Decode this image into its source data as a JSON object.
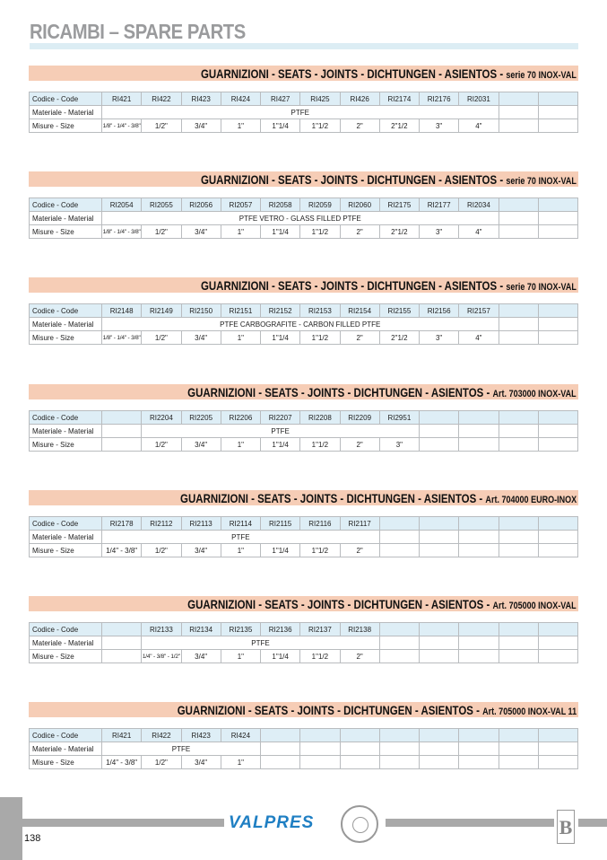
{
  "page_title": "RICAMBI – SPARE PARTS",
  "row_labels": {
    "code": "Codice - Code",
    "material": "Materiale - Material",
    "size": "Misure - Size"
  },
  "banner_main": "GUARNIZIONI - SEATS - JOINTS - DICHTUNGEN - ASIENTOS - ",
  "sections": [
    {
      "suffix": "serie 70 INOX-VAL",
      "codes": [
        "RI421",
        "RI422",
        "RI423",
        "RI424",
        "RI427",
        "RI425",
        "RI426",
        "RI2174",
        "RI2176",
        "RI2031",
        "",
        ""
      ],
      "material": "PTFE",
      "sizes": [
        "1/8\" - 1/4\" - 3/8\"",
        "1/2\"",
        "3/4\"",
        "1\"",
        "1\"1/4",
        "1\"1/2",
        "2\"",
        "2\"1/2",
        "3\"",
        "4\"",
        "",
        ""
      ]
    },
    {
      "suffix": "serie 70 INOX-VAL",
      "codes": [
        "RI2054",
        "RI2055",
        "RI2056",
        "RI2057",
        "RI2058",
        "RI2059",
        "RI2060",
        "RI2175",
        "RI2177",
        "RI2034",
        "",
        ""
      ],
      "material": "PTFE VETRO - GLASS FILLED PTFE",
      "sizes": [
        "1/8\" - 1/4\" - 3/8\"",
        "1/2\"",
        "3/4\"",
        "1\"",
        "1\"1/4",
        "1\"1/2",
        "2\"",
        "2\"1/2",
        "3\"",
        "4\"",
        "",
        ""
      ]
    },
    {
      "suffix": "serie 70 INOX-VAL",
      "codes": [
        "RI2148",
        "RI2149",
        "RI2150",
        "RI2151",
        "RI2152",
        "RI2153",
        "RI2154",
        "RI2155",
        "RI2156",
        "RI2157",
        "",
        ""
      ],
      "material": "PTFE CARBOGRAFITE - CARBON FILLED PTFE",
      "sizes": [
        "1/8\" - 1/4\" - 3/8\"",
        "1/2\"",
        "3/4\"",
        "1\"",
        "1\"1/4",
        "1\"1/2",
        "2\"",
        "2\"1/2",
        "3\"",
        "4\"",
        "",
        ""
      ]
    },
    {
      "suffix": "Art. 703000 INOX-VAL",
      "codes": [
        "",
        "RI2204",
        "RI2205",
        "RI2206",
        "RI2207",
        "RI2208",
        "RI2209",
        "RI2951",
        "",
        "",
        "",
        ""
      ],
      "material": "PTFE",
      "sizes": [
        "",
        "1/2\"",
        "3/4\"",
        "1\"",
        "1\"1/4",
        "1\"1/2",
        "2\"",
        "3\"",
        "",
        "",
        "",
        ""
      ]
    },
    {
      "suffix": "Art. 704000 EURO-INOX",
      "codes": [
        "RI2178",
        "RI2112",
        "RI2113",
        "RI2114",
        "RI2115",
        "RI2116",
        "RI2117",
        "",
        "",
        "",
        "",
        ""
      ],
      "material": "PTFE",
      "sizes": [
        "1/4\" - 3/8\"",
        "1/2\"",
        "3/4\"",
        "1\"",
        "1\"1/4",
        "1\"1/2",
        "2\"",
        "",
        "",
        "",
        "",
        ""
      ]
    },
    {
      "suffix": "Art. 705000 INOX-VAL",
      "codes": [
        "",
        "RI2133",
        "RI2134",
        "RI2135",
        "RI2136",
        "RI2137",
        "RI2138",
        "",
        "",
        "",
        "",
        ""
      ],
      "material": "PTFE",
      "sizes": [
        "",
        "1/4\" - 3/8\" - 1/2\"",
        "3/4\"",
        "1\"",
        "1\"1/4",
        "1\"1/2",
        "2\"",
        "",
        "",
        "",
        "",
        ""
      ]
    },
    {
      "suffix": "Art. 705000 INOX-VAL 11",
      "codes": [
        "RI421",
        "RI422",
        "RI423",
        "RI424",
        "",
        "",
        "",
        "",
        "",
        "",
        "",
        ""
      ],
      "material": "PTFE",
      "sizes": [
        "1/4\" - 3/8\"",
        "1/2\"",
        "3/4\"",
        "1\"",
        "",
        "",
        "",
        "",
        "",
        "",
        "",
        ""
      ]
    }
  ],
  "footer": {
    "page_number": "138",
    "brand": "VALPRES",
    "seal_text": "ISO 9001 - ISO 14001 - OHSAS 18001",
    "group_logo": "BOSORI GROUP",
    "group_initial": "B"
  }
}
